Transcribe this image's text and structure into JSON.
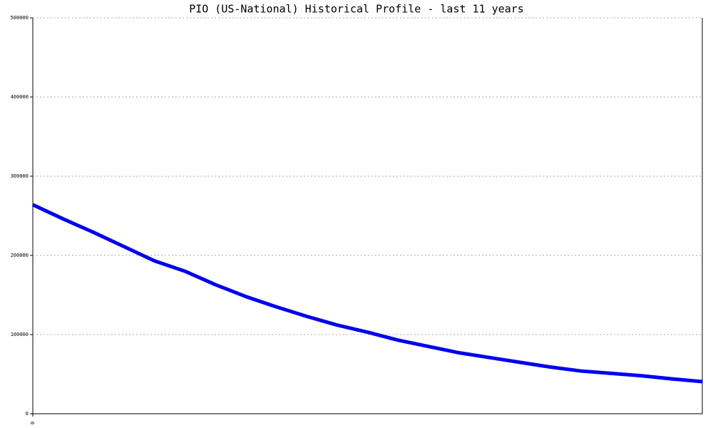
{
  "chart_data": {
    "type": "line",
    "title": "PIO (US-National) Historical Profile - last 11 years",
    "x": [
      0,
      1,
      2,
      3,
      4,
      5,
      6,
      7,
      8,
      9,
      10,
      11,
      12,
      13,
      14,
      15,
      16,
      17,
      18,
      19,
      20,
      21,
      22
    ],
    "series": [
      {
        "name": "PIO",
        "color": "#0000ee",
        "values": [
          264000,
          246000,
          229000,
          211000,
          193000,
          180000,
          163000,
          148000,
          135000,
          123000,
          112000,
          103000,
          93000,
          85000,
          77000,
          71000,
          65000,
          59000,
          54000,
          51000,
          48000,
          44000,
          40500
        ]
      }
    ],
    "xlim": [
      0,
      22
    ],
    "xticks": [
      0
    ],
    "ylim": [
      0,
      500000
    ],
    "yticks": [
      0,
      100000,
      200000,
      300000,
      400000,
      500000
    ],
    "grid": true
  }
}
